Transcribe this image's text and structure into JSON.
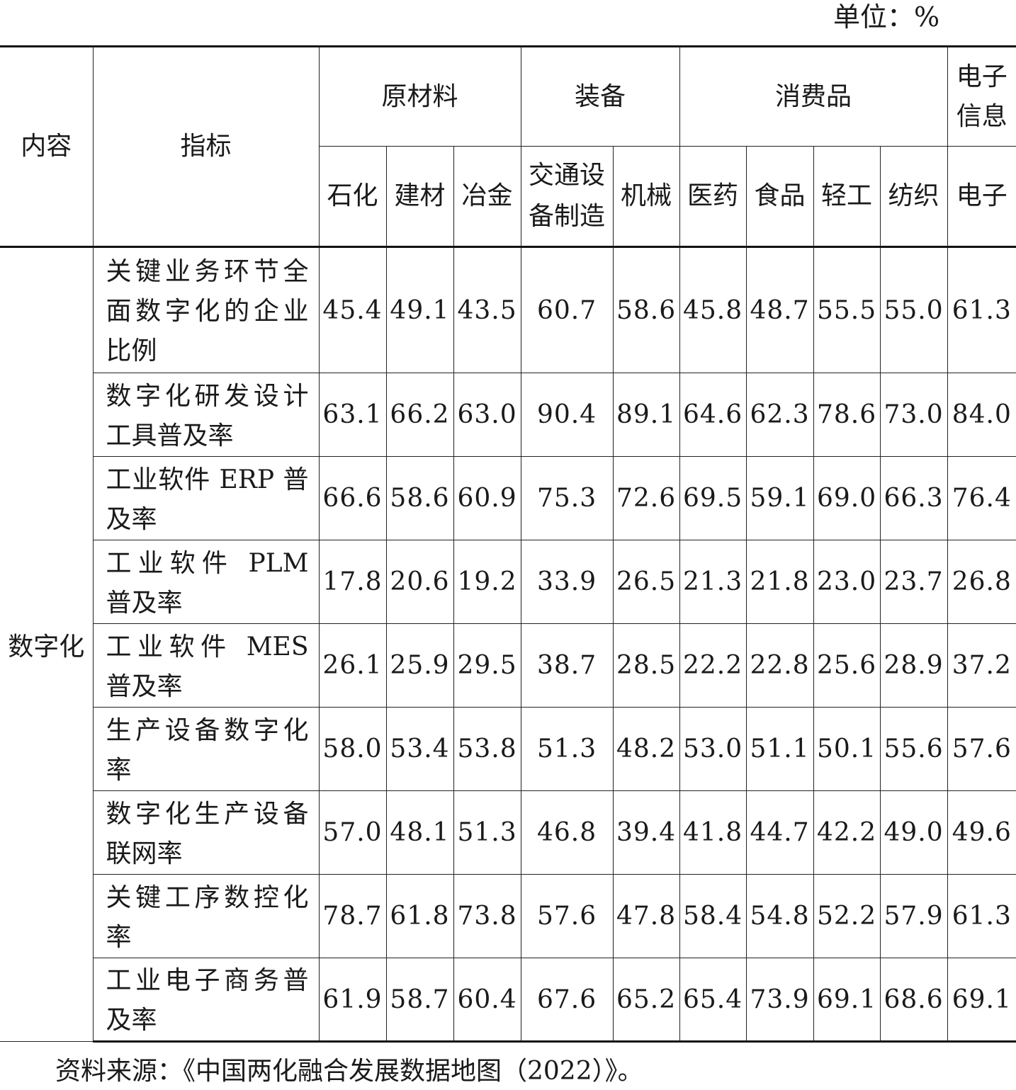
{
  "unit_note": "单位：%",
  "headers": {
    "content": "内容",
    "indicator": "指标",
    "groups": [
      "原材料",
      "装备",
      "消费品",
      "电子信息"
    ],
    "subgroups": [
      "石化",
      "建材",
      "冶金",
      "交通设备制造",
      "机械",
      "医药",
      "食品",
      "轻工",
      "纺织",
      "电子"
    ]
  },
  "category": "数字化",
  "rows": [
    {
      "indicator": "关键业务环节全面数字化的企业比例",
      "values": [
        "45.4",
        "49.1",
        "43.5",
        "60.7",
        "58.6",
        "45.8",
        "48.7",
        "55.5",
        "55.0",
        "61.3"
      ]
    },
    {
      "indicator": "数字化研发设计工具普及率",
      "values": [
        "63.1",
        "66.2",
        "63.0",
        "90.4",
        "89.1",
        "64.6",
        "62.3",
        "78.6",
        "73.0",
        "84.0"
      ]
    },
    {
      "indicator": "工业软件 ERP 普及率",
      "values": [
        "66.6",
        "58.6",
        "60.9",
        "75.3",
        "72.6",
        "69.5",
        "59.1",
        "69.0",
        "66.3",
        "76.4"
      ]
    },
    {
      "indicator": "工业软件 PLM 普及率",
      "values": [
        "17.8",
        "20.6",
        "19.2",
        "33.9",
        "26.5",
        "21.3",
        "21.8",
        "23.0",
        "23.7",
        "26.8"
      ]
    },
    {
      "indicator": "工业软件 MES 普及率",
      "values": [
        "26.1",
        "25.9",
        "29.5",
        "38.7",
        "28.5",
        "22.2",
        "22.8",
        "25.6",
        "28.9",
        "37.2"
      ]
    },
    {
      "indicator": "生产设备数字化率",
      "values": [
        "58.0",
        "53.4",
        "53.8",
        "51.3",
        "48.2",
        "53.0",
        "51.1",
        "50.1",
        "55.6",
        "57.6"
      ]
    },
    {
      "indicator": "数字化生产设备联网率",
      "values": [
        "57.0",
        "48.1",
        "51.3",
        "46.8",
        "39.4",
        "41.8",
        "44.7",
        "42.2",
        "49.0",
        "49.6"
      ]
    },
    {
      "indicator": "关键工序数控化率",
      "values": [
        "78.7",
        "61.8",
        "73.8",
        "57.6",
        "47.8",
        "58.4",
        "54.8",
        "52.2",
        "57.9",
        "61.3"
      ]
    },
    {
      "indicator": "工业电子商务普及率",
      "values": [
        "61.9",
        "58.7",
        "60.4",
        "67.6",
        "65.2",
        "65.4",
        "73.9",
        "69.1",
        "68.6",
        "69.1"
      ]
    }
  ],
  "source": "资料来源：《中国两化融合发展数据地图（2022）》。"
}
